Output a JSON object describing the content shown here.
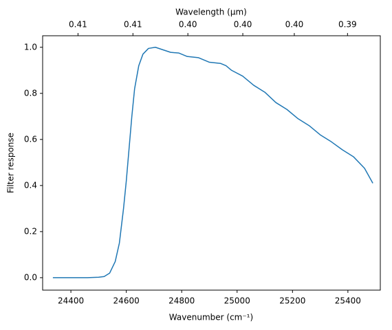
{
  "chart_data": {
    "type": "line",
    "xlabel": "Wavenumber (cm⁻¹)",
    "ylabel": "Filter response",
    "x2label": "Wavelength (μm)",
    "x": [
      24335,
      24400,
      24460,
      24500,
      24520,
      24540,
      24560,
      24575,
      24590,
      24600,
      24610,
      24620,
      24630,
      24645,
      24660,
      24680,
      24705,
      24730,
      24760,
      24790,
      24820,
      24860,
      24900,
      24940,
      24960,
      24980,
      25020,
      25060,
      25100,
      25140,
      25180,
      25220,
      25260,
      25300,
      25340,
      25380,
      25420,
      25460,
      25490
    ],
    "series": [
      {
        "name": "Filter response",
        "color": "#1f77b4",
        "values": [
          0.0,
          0.0,
          0.0,
          0.002,
          0.005,
          0.02,
          0.07,
          0.15,
          0.3,
          0.42,
          0.56,
          0.7,
          0.82,
          0.92,
          0.97,
          0.995,
          1.0,
          0.99,
          0.978,
          0.975,
          0.96,
          0.955,
          0.935,
          0.93,
          0.92,
          0.9,
          0.875,
          0.835,
          0.805,
          0.76,
          0.73,
          0.69,
          0.66,
          0.62,
          0.59,
          0.555,
          0.525,
          0.475,
          0.41
        ]
      }
    ],
    "xlim": [
      24298,
      25517
    ],
    "xticks": [
      24400,
      24600,
      24800,
      25000,
      25200,
      25400
    ],
    "ylim": [
      -0.054,
      1.05
    ],
    "yticks": [
      {
        "value": 0,
        "label": "0.0"
      },
      0.2,
      0.4,
      0.6,
      0.8,
      {
        "value": 1,
        "label": "1.0"
      }
    ],
    "x2lim": [
      0.41156,
      0.39189
    ],
    "x2ticks": [
      {
        "value": 0.4095,
        "label": "0.41"
      },
      {
        "value": 0.4063,
        "label": "0.41"
      },
      {
        "value": 0.4031,
        "label": "0.40"
      },
      {
        "value": 0.3999,
        "label": "0.40"
      },
      {
        "value": 0.3969,
        "label": "0.40"
      },
      {
        "value": 0.3938,
        "label": "0.39"
      }
    ]
  }
}
